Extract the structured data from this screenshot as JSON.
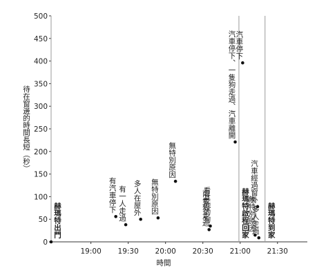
{
  "chart_data": {
    "type": "scatter",
    "y_label": "待在窗邊的時間長短（秒）",
    "x_label": "時間",
    "xlim": [
      1108,
      1314
    ],
    "ylim": [
      0,
      500
    ],
    "xticks": [
      {
        "value": 1140,
        "label": "19:00"
      },
      {
        "value": 1170,
        "label": "19:30"
      },
      {
        "value": 1200,
        "label": "20:00"
      },
      {
        "value": 1230,
        "label": "20:30"
      },
      {
        "value": 1260,
        "label": "21:00"
      },
      {
        "value": 1290,
        "label": "21:30"
      }
    ],
    "yticks": [
      0,
      50,
      100,
      150,
      200,
      250,
      300,
      350,
      400,
      450,
      500
    ],
    "color": "#111",
    "x": [
      1108,
      1160,
      1168,
      1180,
      1194,
      1208,
      1235,
      1236,
      1256,
      1262,
      1274,
      1272,
      1275
    ],
    "values": [
      0,
      56,
      38,
      50,
      53,
      134,
      27,
      35,
      221,
      396,
      78,
      15,
      9
    ],
    "point_labels": [
      null,
      "有汽車停下",
      "有一人走過",
      "多人在屋外",
      "無特別原因",
      "無特別原因",
      "兩隻狗走過",
      "看其他的狗",
      "汽車停下、一隻狗走過、汽車離開",
      "汽車停下",
      "汽車經過窗外",
      "無特別原因",
      "多人走過"
    ],
    "markers": [
      {
        "x": 1108,
        "label": "赫瑪特出門"
      },
      {
        "x": 1259,
        "label": "赫瑪特啟程回家"
      },
      {
        "x": 1280,
        "label": "赫瑪特到家"
      }
    ]
  }
}
